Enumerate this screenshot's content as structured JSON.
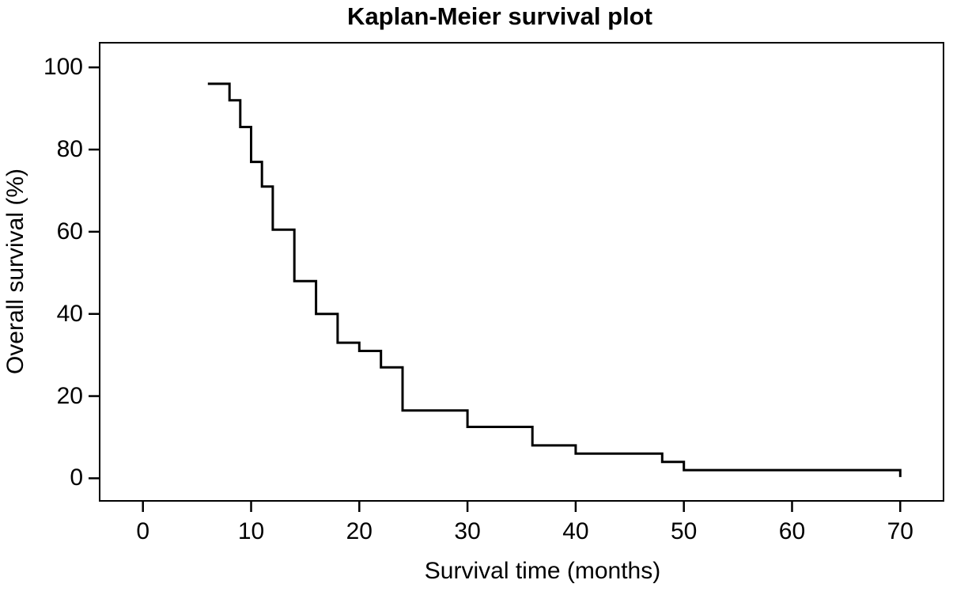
{
  "figure": {
    "title": "Kaplan-Meier survival plot",
    "x_axis_label": "Survival time (months)",
    "y_axis_label": "Overall survival (%)"
  },
  "chart_data": {
    "type": "line",
    "subtype": "kaplan-meier-step-curve",
    "title": "Kaplan-Meier survival plot",
    "xlabel": "Survival time (months)",
    "ylabel": "Overall survival (%)",
    "xlim": [
      -4,
      74
    ],
    "ylim": [
      -5.5,
      106
    ],
    "x_ticks": [
      0,
      10,
      20,
      30,
      40,
      50,
      60,
      70
    ],
    "y_ticks": [
      0,
      20,
      40,
      60,
      80,
      100
    ],
    "grid": false,
    "legend_position": "none",
    "line_color": "#000000",
    "background_color": "#ffffff",
    "series": [
      {
        "name": "Overall survival",
        "comment": "step points as [time_months, survival_percent]; curve is flat until next time, then drops vertically",
        "step_points": [
          [
            6,
            96
          ],
          [
            8,
            92
          ],
          [
            9,
            85.5
          ],
          [
            10,
            77
          ],
          [
            11,
            71
          ],
          [
            12,
            60.5
          ],
          [
            14,
            48
          ],
          [
            16,
            40
          ],
          [
            18,
            33
          ],
          [
            20,
            31
          ],
          [
            22,
            27
          ],
          [
            24,
            16.5
          ],
          [
            30,
            12.5
          ],
          [
            36,
            8
          ],
          [
            40,
            6
          ],
          [
            48,
            4
          ],
          [
            50,
            2
          ],
          [
            70,
            0.3
          ]
        ]
      }
    ]
  }
}
